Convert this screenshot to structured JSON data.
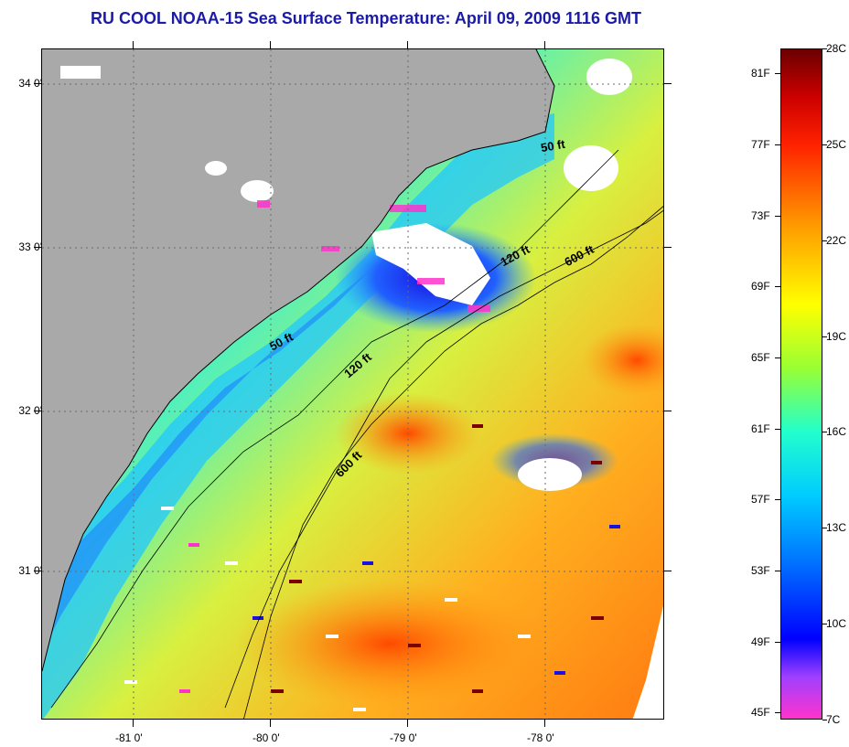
{
  "title": "RU COOL  NOAA-15  Sea Surface Temperature:  April 09, 2009 1116 GMT",
  "colors": {
    "title": "#1b1ba8",
    "land": "#a9a9a9",
    "cloud": "#ffffff",
    "contour": "#000000",
    "grid": "#6b6b6b"
  },
  "map": {
    "lat_ticks": [
      {
        "label": "34 0'",
        "value": 34.0
      },
      {
        "label": "33 0'",
        "value": 33.0
      },
      {
        "label": "32 0'",
        "value": 32.0
      },
      {
        "label": "31 0'",
        "value": 31.0
      }
    ],
    "lon_ticks": [
      {
        "label": "-81 0'",
        "value": -81.0
      },
      {
        "label": "-80 0'",
        "value": -80.0
      },
      {
        "label": "-79 0'",
        "value": -79.0
      },
      {
        "label": "-78 0'",
        "value": -78.0
      }
    ],
    "lat_range": [
      30.2,
      34.2
    ],
    "lon_range": [
      -81.7,
      -77.2
    ],
    "contour_labels": [
      {
        "text": "50 ft",
        "depth_ft": 50
      },
      {
        "text": "120 ft",
        "depth_ft": 120
      },
      {
        "text": "600 ft",
        "depth_ft": 600
      },
      {
        "text": "50 ft",
        "depth_ft": 50
      },
      {
        "text": "120 ft",
        "depth_ft": 120
      },
      {
        "text": "600 ft",
        "depth_ft": 600
      }
    ]
  },
  "colorbar": {
    "fahrenheit": [
      "81F",
      "77F",
      "73F",
      "69F",
      "65F",
      "61F",
      "57F",
      "53F",
      "49F",
      "45F"
    ],
    "celsius": [
      "28C",
      "25C",
      "22C",
      "19C",
      "16C",
      "13C",
      "10C",
      "7C"
    ],
    "range_c": [
      7,
      28
    ],
    "stops": [
      {
        "c": 7,
        "color": "#ff33cc"
      },
      {
        "c": 8.3,
        "color": "#a040ff"
      },
      {
        "c": 9.5,
        "color": "#0000ff"
      },
      {
        "c": 12,
        "color": "#0077ff"
      },
      {
        "c": 14,
        "color": "#00ccff"
      },
      {
        "c": 16,
        "color": "#22ffcc"
      },
      {
        "c": 18,
        "color": "#99ff33"
      },
      {
        "c": 20,
        "color": "#ffff00"
      },
      {
        "c": 22.5,
        "color": "#ff9900"
      },
      {
        "c": 25,
        "color": "#ff2200"
      },
      {
        "c": 26.5,
        "color": "#cc0000"
      },
      {
        "c": 28,
        "color": "#6b0000"
      }
    ]
  }
}
